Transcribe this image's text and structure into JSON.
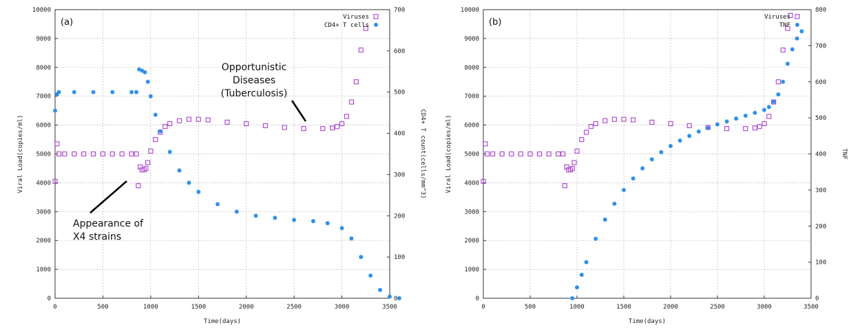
{
  "colors": {
    "viruses": "#b04fd0",
    "cells": "#2a8ee8",
    "grid": "#b8b8b8"
  },
  "chart_data": [
    {
      "type": "scatter",
      "panel_label": "(a)",
      "xlabel": "Time(days)",
      "ylabel": "Viral Load(copies/ml)",
      "y2label": "CD4+ T count(cells/mm^3)",
      "xlim": [
        0,
        3500
      ],
      "ylim": [
        0,
        10000
      ],
      "y2lim": [
        0,
        700
      ],
      "xticks": [
        "0",
        "500",
        "1000",
        "1500",
        "2000",
        "2500",
        "3000",
        "3500"
      ],
      "yticks": [
        "0",
        "1000",
        "2000",
        "3000",
        "4000",
        "5000",
        "6000",
        "7000",
        "8000",
        "9000",
        "10000"
      ],
      "y2ticks": [
        "0",
        "100",
        "200",
        "300",
        "400",
        "500",
        "600",
        "700"
      ],
      "legend_position": "top-right",
      "annotations": [
        {
          "lines": [
            "Opportunistic",
            "Diseases",
            "(Tuberculosis)"
          ]
        },
        {
          "lines": [
            "Appearance of",
            "X4 strains"
          ]
        }
      ],
      "series": [
        {
          "name": "Viruses",
          "axis": "left",
          "marker": "square",
          "points": [
            [
              0,
              4050
            ],
            [
              20,
              5350
            ],
            [
              40,
              5000
            ],
            [
              100,
              5000
            ],
            [
              200,
              5000
            ],
            [
              300,
              5000
            ],
            [
              400,
              5000
            ],
            [
              500,
              5000
            ],
            [
              600,
              5000
            ],
            [
              700,
              5000
            ],
            [
              800,
              5000
            ],
            [
              850,
              5000
            ],
            [
              870,
              3900
            ],
            [
              890,
              4550
            ],
            [
              910,
              4450
            ],
            [
              930,
              4450
            ],
            [
              950,
              4500
            ],
            [
              970,
              4700
            ],
            [
              1000,
              5100
            ],
            [
              1050,
              5500
            ],
            [
              1100,
              5750
            ],
            [
              1150,
              5950
            ],
            [
              1200,
              6050
            ],
            [
              1300,
              6150
            ],
            [
              1400,
              6200
            ],
            [
              1500,
              6200
            ],
            [
              1600,
              6180
            ],
            [
              1800,
              6100
            ],
            [
              2000,
              6050
            ],
            [
              2200,
              5980
            ],
            [
              2400,
              5920
            ],
            [
              2600,
              5880
            ],
            [
              2800,
              5880
            ],
            [
              2900,
              5900
            ],
            [
              2950,
              5950
            ],
            [
              3000,
              6050
            ],
            [
              3050,
              6300
            ],
            [
              3100,
              6800
            ],
            [
              3150,
              7500
            ],
            [
              3200,
              8600
            ],
            [
              3250,
              9350
            ]
          ]
        },
        {
          "name": "CD4+ T cells",
          "axis": "right",
          "marker": "star",
          "points": [
            [
              0,
              455
            ],
            [
              20,
              495
            ],
            [
              40,
              500
            ],
            [
              200,
              500
            ],
            [
              400,
              500
            ],
            [
              600,
              500
            ],
            [
              800,
              500
            ],
            [
              850,
              500
            ],
            [
              880,
              555
            ],
            [
              910,
              552
            ],
            [
              940,
              548
            ],
            [
              970,
              525
            ],
            [
              1000,
              490
            ],
            [
              1050,
              445
            ],
            [
              1100,
              405
            ],
            [
              1200,
              355
            ],
            [
              1300,
              310
            ],
            [
              1400,
              280
            ],
            [
              1500,
              258
            ],
            [
              1700,
              228
            ],
            [
              1900,
              210
            ],
            [
              2100,
              200
            ],
            [
              2300,
              195
            ],
            [
              2500,
              190
            ],
            [
              2700,
              187
            ],
            [
              2850,
              182
            ],
            [
              3000,
              170
            ],
            [
              3100,
              145
            ],
            [
              3200,
              100
            ],
            [
              3300,
              55
            ],
            [
              3400,
              20
            ],
            [
              3500,
              4
            ],
            [
              3600,
              0
            ]
          ]
        }
      ]
    },
    {
      "type": "scatter",
      "panel_label": "(b)",
      "xlabel": "Time(days)",
      "ylabel": "Viral Load(copies/ml)",
      "y2label": "TNF",
      "xlim": [
        0,
        3500
      ],
      "ylim": [
        0,
        10000
      ],
      "y2lim": [
        0,
        800
      ],
      "xticks": [
        "0",
        "500",
        "1000",
        "1500",
        "2000",
        "2500",
        "3000",
        "3500"
      ],
      "yticks": [
        "0",
        "1000",
        "2000",
        "3000",
        "4000",
        "5000",
        "6000",
        "7000",
        "8000",
        "9000",
        "10000"
      ],
      "y2ticks": [
        "0",
        "100",
        "200",
        "300",
        "400",
        "500",
        "600",
        "700",
        "800"
      ],
      "legend_position": "top-right",
      "series": [
        {
          "name": "Viruses",
          "axis": "left",
          "marker": "square",
          "points": [
            [
              0,
              4050
            ],
            [
              20,
              5350
            ],
            [
              40,
              5000
            ],
            [
              100,
              5000
            ],
            [
              200,
              5000
            ],
            [
              300,
              5000
            ],
            [
              400,
              5000
            ],
            [
              500,
              5000
            ],
            [
              600,
              5000
            ],
            [
              700,
              5000
            ],
            [
              800,
              5000
            ],
            [
              850,
              5000
            ],
            [
              870,
              3900
            ],
            [
              890,
              4550
            ],
            [
              910,
              4450
            ],
            [
              930,
              4450
            ],
            [
              950,
              4500
            ],
            [
              970,
              4700
            ],
            [
              1000,
              5100
            ],
            [
              1050,
              5500
            ],
            [
              1100,
              5750
            ],
            [
              1150,
              5950
            ],
            [
              1200,
              6050
            ],
            [
              1300,
              6150
            ],
            [
              1400,
              6200
            ],
            [
              1500,
              6200
            ],
            [
              1600,
              6180
            ],
            [
              1800,
              6100
            ],
            [
              2000,
              6050
            ],
            [
              2200,
              5980
            ],
            [
              2400,
              5920
            ],
            [
              2600,
              5880
            ],
            [
              2800,
              5880
            ],
            [
              2900,
              5900
            ],
            [
              2950,
              5950
            ],
            [
              3000,
              6050
            ],
            [
              3050,
              6300
            ],
            [
              3100,
              6800
            ],
            [
              3150,
              7500
            ],
            [
              3200,
              8600
            ],
            [
              3250,
              9350
            ],
            [
              3280,
              9800
            ]
          ]
        },
        {
          "name": "TNF",
          "axis": "right",
          "marker": "star",
          "points": [
            [
              950,
              0
            ],
            [
              1000,
              30
            ],
            [
              1050,
              65
            ],
            [
              1100,
              100
            ],
            [
              1200,
              165
            ],
            [
              1300,
              218
            ],
            [
              1400,
              262
            ],
            [
              1500,
              300
            ],
            [
              1600,
              332
            ],
            [
              1700,
              360
            ],
            [
              1800,
              385
            ],
            [
              1900,
              405
            ],
            [
              2000,
              422
            ],
            [
              2100,
              437
            ],
            [
              2200,
              450
            ],
            [
              2300,
              462
            ],
            [
              2400,
              472
            ],
            [
              2500,
              482
            ],
            [
              2600,
              490
            ],
            [
              2700,
              498
            ],
            [
              2800,
              506
            ],
            [
              2900,
              514
            ],
            [
              3000,
              522
            ],
            [
              3050,
              530
            ],
            [
              3100,
              545
            ],
            [
              3150,
              565
            ],
            [
              3200,
              600
            ],
            [
              3250,
              650
            ],
            [
              3300,
              690
            ],
            [
              3350,
              720
            ],
            [
              3400,
              740
            ]
          ]
        }
      ]
    }
  ]
}
